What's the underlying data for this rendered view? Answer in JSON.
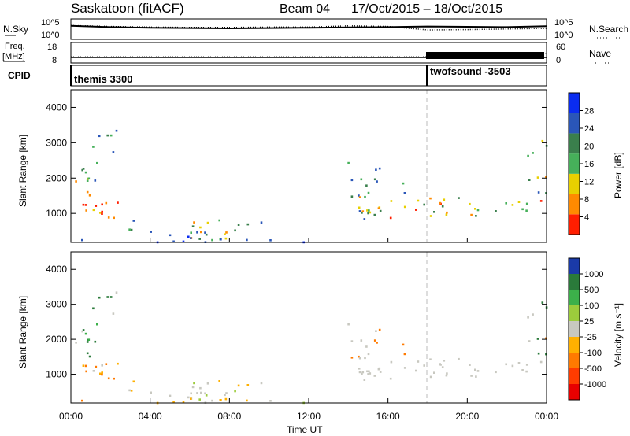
{
  "header": {
    "title": "Saskatoon (fitACF)",
    "beam": "Beam 04",
    "dates": "17/Oct/2015 – 18/Oct/2015"
  },
  "chart_data": [
    {
      "type": "line",
      "labels": {
        "left": "N.Sky",
        "right": "N.Search"
      },
      "ylim_left": [
        "10^0",
        "10^5"
      ],
      "ylim_right": [
        "10^0",
        "10^5"
      ],
      "x": [
        0,
        2,
        4,
        6,
        8,
        10,
        12,
        14,
        16,
        18,
        20,
        22,
        24
      ],
      "series": [
        {
          "values": [
            3.8,
            3.4,
            3.2,
            3.1,
            3.0,
            3.1,
            3.2,
            3.3,
            3.4,
            3.6,
            3.5,
            3.4,
            3.7
          ],
          "style": "solid"
        },
        {
          "values": [
            3.9,
            3.6,
            3.4,
            3.3,
            3.3,
            3.4,
            3.4,
            3.8,
            3.6,
            2.5,
            2.6,
            2.8,
            3.0
          ],
          "style": "dotted"
        }
      ]
    },
    {
      "type": "line",
      "labels": {
        "left": "Freq. [MHz]",
        "right": "Nave"
      },
      "ylim_left": [
        8,
        18
      ],
      "ylim_right": [
        0,
        60
      ],
      "x": [
        0,
        6,
        12,
        18,
        18.01,
        24
      ],
      "series": [
        {
          "values": [
            10.2,
            10.2,
            10.2,
            10.2,
            10.2,
            10.2
          ],
          "style": "solid"
        },
        {
          "values": [
            16,
            16,
            16,
            16,
            27,
            27
          ],
          "style": "dotted"
        }
      ]
    },
    {
      "type": "table",
      "label": "CPID",
      "segments": [
        {
          "name": "themis 3300",
          "start": 0
        },
        {
          "name": "twofsound -3503",
          "start": 18
        }
      ]
    },
    {
      "type": "heatmap",
      "ylabel": "Slant Range [km]",
      "yticks": [
        1000,
        2000,
        3000,
        4000
      ],
      "ylim": [
        180,
        4500
      ],
      "xlim": [
        0,
        24
      ],
      "colorbar": {
        "title": "Power [dB]",
        "ticks": [
          "4",
          "8",
          "12",
          "16",
          "20",
          "24",
          "28"
        ],
        "colors": [
          "#0a2cf0",
          "#2a56b8",
          "#3a7f4c",
          "#46b05a",
          "#e8d000",
          "#ff8a00",
          "#ff1e00"
        ]
      }
    },
    {
      "type": "heatmap",
      "ylabel": "Slant Range [km]",
      "yticks": [
        1000,
        2000,
        3000,
        4000
      ],
      "ylim": [
        180,
        4500
      ],
      "xlim": [
        0,
        24
      ],
      "xlabel": "Time UT",
      "xticks": [
        "00:00",
        "04:00",
        "08:00",
        "12:00",
        "16:00",
        "20:00",
        "00:00"
      ],
      "colorbar": {
        "title": "Velocity [m s⁻¹]",
        "ticks": [
          "1000",
          "500",
          "100",
          "25",
          "-25",
          "-100",
          "-500",
          "-1000"
        ],
        "colors": [
          "#1a3aa8",
          "#2a7a3a",
          "#3cb04a",
          "#9ccc3c",
          "#c8c8c0",
          "#ffb000",
          "#ff7a00",
          "#ff3c00",
          "#e80000"
        ]
      }
    }
  ],
  "colors": {
    "gray": "#c8c8c0",
    "dashed": "#bbbbbb"
  }
}
